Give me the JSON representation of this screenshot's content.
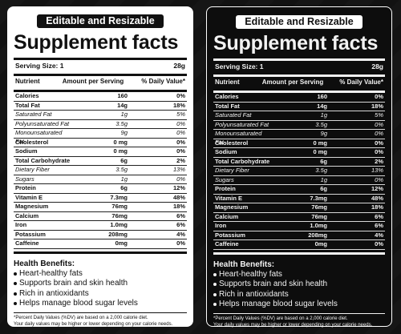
{
  "label": {
    "banner": "Editable and Resizable",
    "title": "Supplement facts",
    "serving_size_label": "Serving Size: 1",
    "serving_size_value": "28g",
    "col_nutrient": "Nutrient",
    "col_amount": "Amount per Serving",
    "col_dv": "% Daily Value*",
    "nutrients": [
      {
        "name": "Calories",
        "amount": "160",
        "dv": "0%",
        "style": "bold"
      },
      {
        "name": "Total Fat",
        "amount": "14g",
        "dv": "18%",
        "style": "bold"
      },
      {
        "name": "Saturated Fat",
        "amount": "1g",
        "dv": "5%",
        "style": "ital"
      },
      {
        "name": "Polyunsaturated Fat",
        "amount": "3.5g",
        "dv": "0%",
        "style": "ital"
      },
      {
        "name": "Monounsaturated Fat",
        "amount": "9g",
        "dv": "0%",
        "style": "ital"
      },
      {
        "name": "Cholesterol",
        "amount": "0 mg",
        "dv": "0%",
        "style": "bold"
      },
      {
        "name": "Sodium",
        "amount": "0 mg",
        "dv": "0%",
        "style": "bold"
      },
      {
        "name": "Total Carbohydrate",
        "amount": "6g",
        "dv": "2%",
        "style": "bold"
      },
      {
        "name": "Dietary Fiber",
        "amount": "3.5g",
        "dv": "13%",
        "style": "ital"
      },
      {
        "name": "Sugars",
        "amount": "1g",
        "dv": "0%",
        "style": "ital"
      },
      {
        "name": "Protein",
        "amount": "6g",
        "dv": "12%",
        "style": "bold"
      },
      {
        "name": "Vitamin E",
        "amount": "7.3mg",
        "dv": "48%",
        "style": "bold"
      },
      {
        "name": "Magnesium",
        "amount": "76mg",
        "dv": "18%",
        "style": "bold"
      },
      {
        "name": "Calcium",
        "amount": "76mg",
        "dv": "6%",
        "style": "bold"
      },
      {
        "name": "Iron",
        "amount": "1.0mg",
        "dv": "6%",
        "style": "bold"
      },
      {
        "name": "Potassium",
        "amount": "208mg",
        "dv": "4%",
        "style": "bold"
      },
      {
        "name": "Caffeine",
        "amount": "0mg",
        "dv": "0%",
        "style": "bold"
      }
    ],
    "benefits_title": "Health Benefits:",
    "benefits": [
      "Heart-healthy fats",
      "Supports brain and skin health",
      "Rich in antioxidants",
      "Helps manage blood sugar levels"
    ],
    "footnote_1": "*Percent Daily Values (%DV) are based on a 2,000 calorie diet.",
    "footnote_2": "Your daily values may be higher or lower depending on your calorie needs."
  }
}
